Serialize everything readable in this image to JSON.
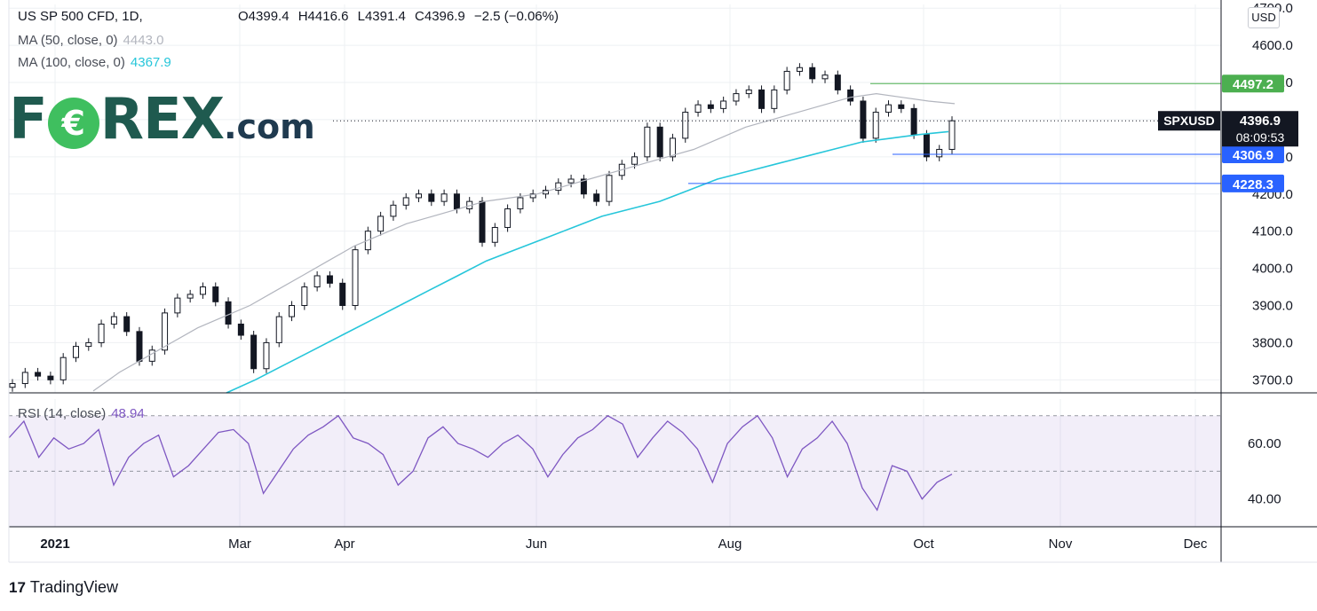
{
  "header": {
    "symbol_label": "US SP 500 CFD, 1D,",
    "ohlc": {
      "open": "O4399.4",
      "high": "H4416.6",
      "low": "L4391.4",
      "close": "C4396.9",
      "change": "−2.5 (−0.06%)"
    },
    "ma50": {
      "label": "MA (50, close, 0)",
      "value": "4443.0",
      "color": "#b2b5be"
    },
    "ma100": {
      "label": "MA (100, close, 0)",
      "value": "4367.9",
      "color": "#26c6da"
    }
  },
  "logo": {
    "text_f": "F",
    "text_rex": "REX",
    "text_com": ".com",
    "coin": "€"
  },
  "currency_button": "USD",
  "footer": {
    "brand": "TradingView",
    "mark": "17"
  },
  "rsi": {
    "label": "RSI (14, close)",
    "value": "48.94",
    "color": "#7e57c2"
  },
  "chart_data": [
    {
      "type": "candlestick",
      "title": "US SP 500 CFD, 1D,",
      "x_axis_labels": [
        "2021",
        "Mar",
        "Apr",
        "Jun",
        "Aug",
        "Oct",
        "Nov",
        "Dec"
      ],
      "y_axis_labels": [
        "3700.0",
        "3800.0",
        "3900.0",
        "4000.0",
        "4100.0",
        "4200.0",
        "4300.0",
        "4400.0",
        "4500.0",
        "4600.0",
        "4700.0"
      ],
      "ylim": [
        3665,
        4710
      ],
      "grid": true,
      "last_price": {
        "symbol": "SPXUSD",
        "value": "4396.9",
        "countdown": "08:09:53",
        "level": 4396.9
      },
      "horizontal_lines": [
        {
          "label": "4497.2",
          "value": 4497.2,
          "color": "#4caf50"
        },
        {
          "label": "4306.9",
          "value": 4306.9,
          "color": "#2962ff"
        },
        {
          "label": "4228.3",
          "value": 4228.3,
          "color": "#2962ff"
        }
      ],
      "price_series": [
        3690,
        3720,
        3710,
        3700,
        3760,
        3790,
        3800,
        3850,
        3870,
        3830,
        3750,
        3780,
        3880,
        3920,
        3930,
        3950,
        3910,
        3850,
        3820,
        3730,
        3800,
        3870,
        3900,
        3950,
        3980,
        3960,
        3900,
        4050,
        4100,
        4140,
        4170,
        4190,
        4200,
        4180,
        4200,
        4160,
        4180,
        4070,
        4110,
        4160,
        4190,
        4200,
        4210,
        4230,
        4240,
        4200,
        4180,
        4250,
        4280,
        4300,
        4380,
        4300,
        4350,
        4420,
        4440,
        4430,
        4450,
        4470,
        4480,
        4430,
        4480,
        4530,
        4540,
        4510,
        4520,
        4480,
        4450,
        4350,
        4420,
        4440,
        4430,
        4360,
        4300,
        4320,
        4397
      ],
      "ma50_series": [
        3670,
        3720,
        3760,
        3800,
        3840,
        3870,
        3900,
        3940,
        3980,
        4020,
        4060,
        4090,
        4120,
        4140,
        4160,
        4180,
        4190,
        4200,
        4220,
        4240,
        4260,
        4280,
        4300,
        4320,
        4350,
        4380,
        4400,
        4420,
        4440,
        4460,
        4470,
        4460,
        4450,
        4443
      ],
      "ma100_series": [
        3665,
        3700,
        3740,
        3780,
        3820,
        3860,
        3900,
        3940,
        3980,
        4020,
        4050,
        4080,
        4110,
        4140,
        4160,
        4180,
        4210,
        4240,
        4260,
        4280,
        4300,
        4320,
        4340,
        4350,
        4360,
        4367.9
      ]
    },
    {
      "type": "line",
      "title": "RSI (14, close)",
      "y_axis_labels": [
        "40.00",
        "60.00"
      ],
      "ylim": [
        30,
        76
      ],
      "levels": [
        70,
        50,
        30
      ],
      "values": [
        62,
        68,
        55,
        62,
        58,
        60,
        65,
        45,
        55,
        60,
        63,
        48,
        52,
        58,
        64,
        65,
        60,
        42,
        50,
        58,
        63,
        66,
        70,
        62,
        60,
        56,
        45,
        50,
        62,
        66,
        60,
        58,
        55,
        60,
        63,
        58,
        48,
        56,
        62,
        65,
        70,
        67,
        55,
        62,
        68,
        64,
        58,
        46,
        60,
        66,
        70,
        62,
        48,
        58,
        62,
        68,
        60,
        44,
        36,
        52,
        50,
        40,
        46,
        48.94
      ]
    }
  ]
}
